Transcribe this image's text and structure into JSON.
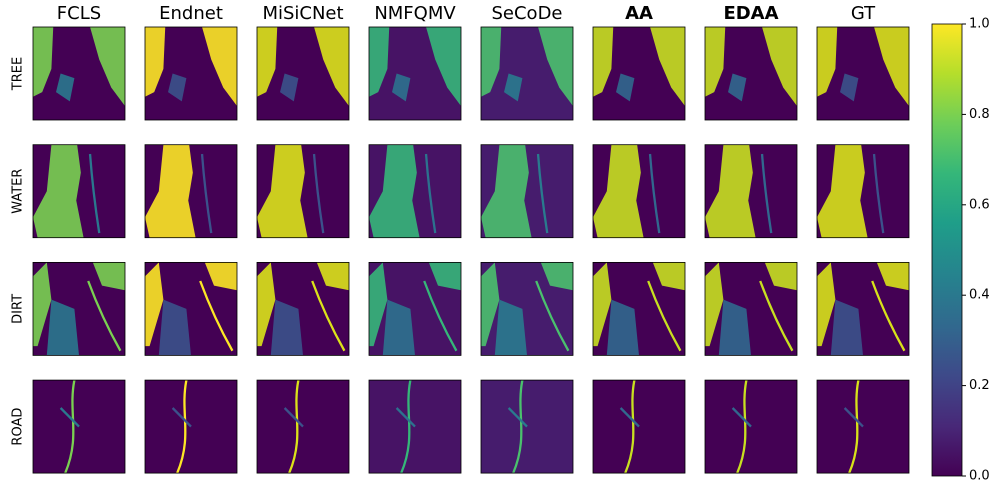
{
  "chart_data": {
    "type": "image-grid",
    "columns": [
      {
        "title": "FCLS",
        "bold": false
      },
      {
        "title": "Endnet",
        "bold": false
      },
      {
        "title": "MiSiCNet",
        "bold": false
      },
      {
        "title": "NMFQMV",
        "bold": false
      },
      {
        "title": "SeCoDe",
        "bold": false
      },
      {
        "title": "AA",
        "bold": true
      },
      {
        "title": "EDAA",
        "bold": true
      },
      {
        "title": "GT",
        "bold": false
      }
    ],
    "rows": [
      "TREE",
      "WATER",
      "DIRT",
      "ROAD"
    ],
    "colormap": "viridis",
    "ylim": [
      0,
      1
    ],
    "yticks": [
      {
        "value": 0,
        "label": "0.0"
      },
      0.2,
      0.4,
      0.6,
      0.8,
      {
        "value": 1,
        "label": "1.0"
      }
    ]
  }
}
